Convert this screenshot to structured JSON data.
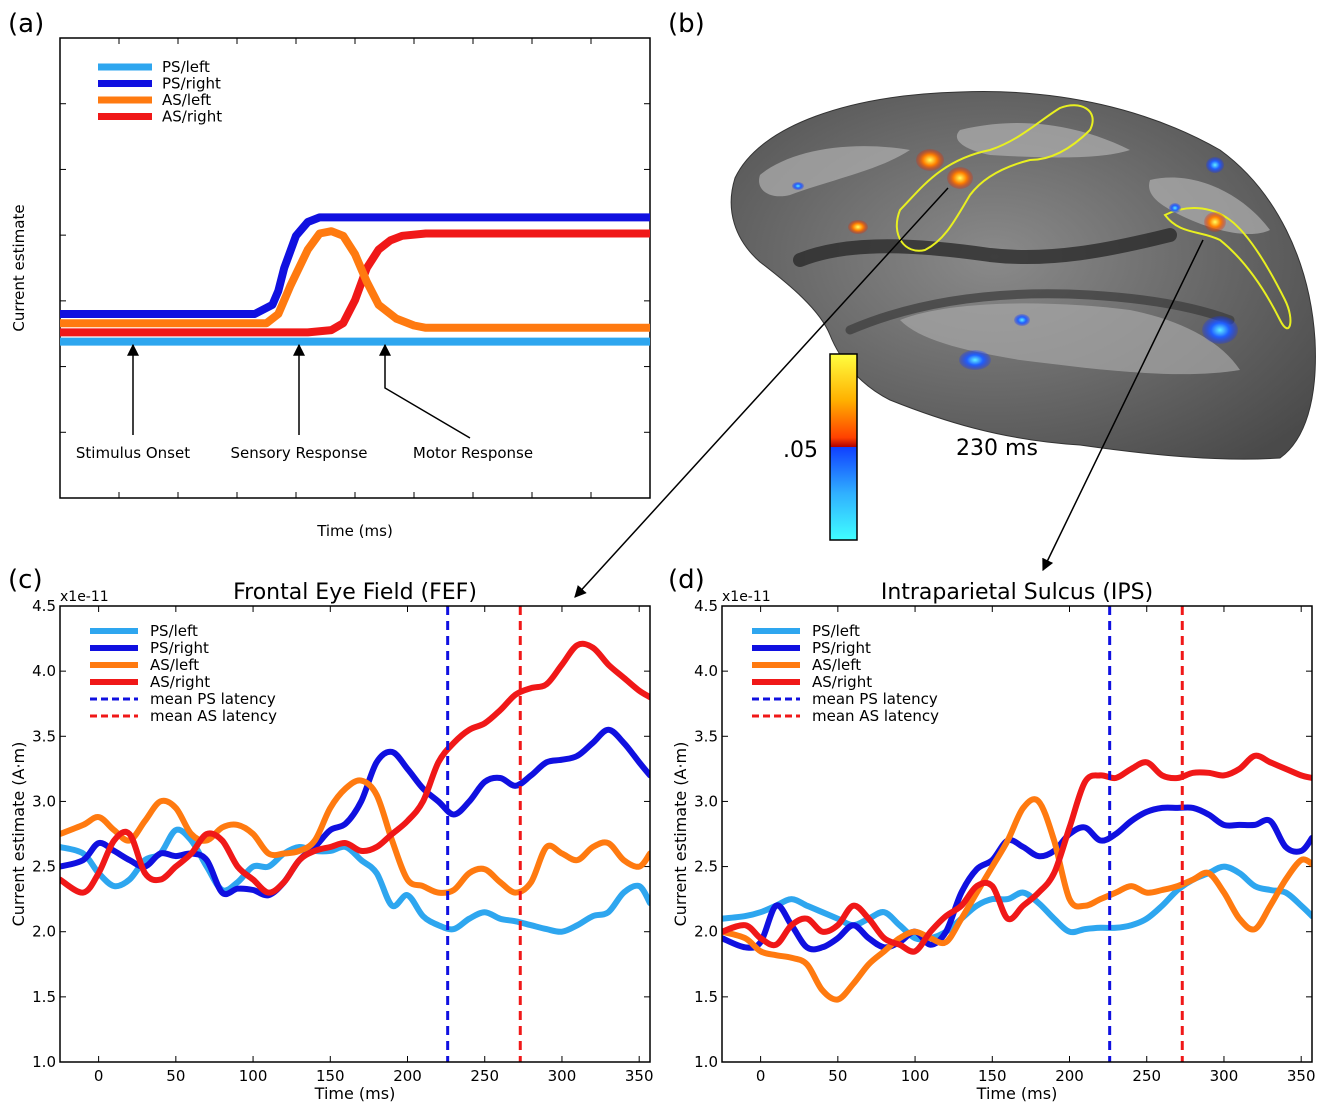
{
  "panel_labels": {
    "a": "(a)",
    "b": "(b)",
    "c": "(c)",
    "d": "(d)"
  },
  "colors": {
    "ps_left": "#2ea6ef",
    "ps_right": "#1010e0",
    "as_left": "#ff7a10",
    "as_right": "#f01818",
    "outline": "#e8f020"
  },
  "brain": {
    "colorbar_label": ".05",
    "time_label": "230 ms",
    "colorbar_colors": [
      "#ffff40",
      "#ffb000",
      "#ff4000",
      "#b00000",
      "#1040ff",
      "#30b0ff",
      "#40ffff"
    ]
  },
  "chart_data": [
    {
      "type": "line",
      "panel": "a",
      "xlabel": "Time (ms)",
      "ylabel": "Current estimate",
      "x_range": [
        0,
        100
      ],
      "y_range": [
        0,
        10
      ],
      "legend": {
        "position": "top-left",
        "entries": [
          "PS/left",
          "PS/right",
          "AS/left",
          "AS/right"
        ]
      },
      "series": [
        {
          "name": "PS/left",
          "x": [
            0,
            100
          ],
          "y": [
            3.4,
            3.4
          ]
        },
        {
          "name": "PS/right",
          "x": [
            0,
            33,
            36,
            37,
            38,
            40,
            42,
            44,
            100
          ],
          "y": [
            4.0,
            4.0,
            4.2,
            4.5,
            5.0,
            5.7,
            6.0,
            6.1,
            6.1
          ]
        },
        {
          "name": "AS/left",
          "x": [
            0,
            35,
            37,
            39,
            42,
            44,
            46,
            48,
            50,
            52,
            54,
            57,
            60,
            62,
            100
          ],
          "y": [
            3.8,
            3.8,
            4.0,
            4.6,
            5.4,
            5.75,
            5.8,
            5.7,
            5.3,
            4.7,
            4.2,
            3.9,
            3.75,
            3.7,
            3.7
          ]
        },
        {
          "name": "AS/right",
          "x": [
            0,
            42,
            46,
            48,
            50,
            52,
            54,
            56,
            58,
            62,
            100
          ],
          "y": [
            3.6,
            3.6,
            3.65,
            3.8,
            4.3,
            5.0,
            5.4,
            5.6,
            5.7,
            5.75,
            5.75
          ]
        }
      ],
      "annotations": [
        "Stimulus Onset",
        "Sensory Response",
        "Motor Response"
      ]
    },
    {
      "type": "line",
      "panel": "c",
      "title": "Frontal Eye Field (FEF)",
      "xlabel": "Time (ms)",
      "ylabel": "Current estimate (A·m)",
      "y_offset_label": "x1e-11",
      "xlim": [
        -25,
        357
      ],
      "ylim": [
        1.0,
        4.5
      ],
      "xticks": [
        0,
        50,
        100,
        150,
        200,
        250,
        300,
        350
      ],
      "yticks": [
        1.0,
        1.5,
        2.0,
        2.5,
        3.0,
        3.5,
        4.0,
        4.5
      ],
      "xtick_labels": [
        "0",
        "50",
        "100",
        "150",
        "200",
        "250",
        "300",
        "350"
      ],
      "ytick_labels": [
        "1.0",
        "1.5",
        "2.0",
        "2.5",
        "3.0",
        "3.5",
        "4.0",
        "4.5"
      ],
      "legend": {
        "position": "top-left",
        "entries": [
          "PS/left",
          "PS/right",
          "AS/left",
          "AS/right",
          "mean PS latency",
          "mean AS latency"
        ]
      },
      "vlines": [
        {
          "name": "mean PS latency",
          "x": 226
        },
        {
          "name": "mean AS latency",
          "x": 273
        }
      ],
      "series": [
        {
          "name": "PS/left",
          "x": [
            -25,
            -10,
            0,
            10,
            20,
            30,
            40,
            50,
            60,
            70,
            80,
            90,
            100,
            110,
            120,
            130,
            140,
            150,
            160,
            170,
            180,
            190,
            200,
            210,
            220,
            230,
            240,
            250,
            260,
            270,
            280,
            290,
            300,
            310,
            320,
            330,
            340,
            350,
            357
          ],
          "y": [
            2.65,
            2.6,
            2.45,
            2.35,
            2.4,
            2.55,
            2.6,
            2.78,
            2.7,
            2.5,
            2.32,
            2.38,
            2.5,
            2.5,
            2.6,
            2.65,
            2.62,
            2.62,
            2.65,
            2.55,
            2.45,
            2.2,
            2.28,
            2.12,
            2.05,
            2.02,
            2.1,
            2.15,
            2.1,
            2.08,
            2.05,
            2.02,
            2.0,
            2.05,
            2.12,
            2.15,
            2.3,
            2.35,
            2.22
          ]
        },
        {
          "name": "PS/right",
          "x": [
            -25,
            -10,
            0,
            10,
            20,
            30,
            40,
            50,
            60,
            70,
            80,
            90,
            100,
            110,
            120,
            130,
            140,
            150,
            160,
            170,
            180,
            190,
            200,
            210,
            220,
            230,
            240,
            250,
            260,
            270,
            280,
            290,
            300,
            310,
            320,
            330,
            340,
            350,
            357
          ],
          "y": [
            2.5,
            2.55,
            2.68,
            2.62,
            2.55,
            2.5,
            2.6,
            2.58,
            2.6,
            2.55,
            2.3,
            2.33,
            2.32,
            2.28,
            2.38,
            2.55,
            2.65,
            2.78,
            2.83,
            3.0,
            3.3,
            3.38,
            3.25,
            3.1,
            3.0,
            2.9,
            3.0,
            3.15,
            3.18,
            3.12,
            3.2,
            3.3,
            3.32,
            3.35,
            3.45,
            3.55,
            3.45,
            3.3,
            3.2
          ]
        },
        {
          "name": "AS/left",
          "x": [
            -25,
            -10,
            0,
            10,
            20,
            30,
            40,
            50,
            60,
            70,
            80,
            90,
            100,
            110,
            120,
            130,
            140,
            150,
            160,
            170,
            180,
            190,
            200,
            210,
            220,
            230,
            240,
            250,
            260,
            270,
            280,
            290,
            300,
            310,
            320,
            330,
            340,
            350,
            357
          ],
          "y": [
            2.75,
            2.82,
            2.88,
            2.78,
            2.7,
            2.85,
            3.0,
            2.95,
            2.75,
            2.7,
            2.8,
            2.82,
            2.75,
            2.6,
            2.6,
            2.62,
            2.7,
            2.95,
            3.1,
            3.16,
            3.05,
            2.7,
            2.4,
            2.35,
            2.3,
            2.32,
            2.45,
            2.48,
            2.38,
            2.3,
            2.38,
            2.65,
            2.6,
            2.55,
            2.65,
            2.68,
            2.55,
            2.5,
            2.6
          ]
        },
        {
          "name": "AS/right",
          "x": [
            -25,
            -10,
            0,
            10,
            20,
            30,
            40,
            50,
            60,
            70,
            80,
            90,
            100,
            110,
            120,
            130,
            140,
            150,
            160,
            170,
            180,
            190,
            200,
            210,
            220,
            230,
            240,
            250,
            260,
            270,
            280,
            290,
            300,
            310,
            320,
            330,
            340,
            350,
            357
          ],
          "y": [
            2.4,
            2.3,
            2.45,
            2.7,
            2.75,
            2.45,
            2.4,
            2.5,
            2.6,
            2.75,
            2.7,
            2.5,
            2.4,
            2.3,
            2.38,
            2.55,
            2.62,
            2.65,
            2.68,
            2.62,
            2.65,
            2.75,
            2.85,
            3.0,
            3.3,
            3.45,
            3.55,
            3.6,
            3.7,
            3.82,
            3.87,
            3.9,
            4.05,
            4.2,
            4.18,
            4.05,
            3.95,
            3.85,
            3.8
          ]
        }
      ]
    },
    {
      "type": "line",
      "panel": "d",
      "title": "Intraparietal Sulcus (IPS)",
      "xlabel": "Time (ms)",
      "ylabel": "Current estimate (A·m)",
      "y_offset_label": "x1e-11",
      "xlim": [
        -25,
        357
      ],
      "ylim": [
        1.0,
        4.5
      ],
      "xticks": [
        0,
        50,
        100,
        150,
        200,
        250,
        300,
        350
      ],
      "yticks": [
        1.0,
        1.5,
        2.0,
        2.5,
        3.0,
        3.5,
        4.0,
        4.5
      ],
      "xtick_labels": [
        "0",
        "50",
        "100",
        "150",
        "200",
        "250",
        "300",
        "350"
      ],
      "ytick_labels": [
        "1.0",
        "1.5",
        "2.0",
        "2.5",
        "3.0",
        "3.5",
        "4.0",
        "4.5"
      ],
      "legend": {
        "position": "top-left",
        "entries": [
          "PS/left",
          "PS/right",
          "AS/left",
          "AS/right",
          "mean PS latency",
          "mean AS latency"
        ]
      },
      "vlines": [
        {
          "name": "mean PS latency",
          "x": 226
        },
        {
          "name": "mean AS latency",
          "x": 273
        }
      ],
      "series": [
        {
          "name": "PS/left",
          "x": [
            -25,
            -10,
            0,
            10,
            20,
            30,
            40,
            50,
            60,
            70,
            80,
            90,
            100,
            110,
            120,
            130,
            140,
            150,
            160,
            170,
            180,
            190,
            200,
            210,
            220,
            230,
            240,
            250,
            260,
            270,
            280,
            290,
            300,
            310,
            320,
            330,
            340,
            350,
            357
          ],
          "y": [
            2.1,
            2.12,
            2.15,
            2.2,
            2.25,
            2.2,
            2.15,
            2.1,
            2.05,
            2.1,
            2.15,
            2.05,
            1.95,
            1.95,
            2.0,
            2.1,
            2.2,
            2.25,
            2.25,
            2.3,
            2.22,
            2.1,
            2.0,
            2.02,
            2.03,
            2.03,
            2.05,
            2.1,
            2.2,
            2.32,
            2.4,
            2.45,
            2.5,
            2.45,
            2.35,
            2.32,
            2.3,
            2.2,
            2.12
          ]
        },
        {
          "name": "PS/right",
          "x": [
            -25,
            -10,
            0,
            10,
            20,
            30,
            40,
            50,
            60,
            70,
            80,
            90,
            100,
            110,
            120,
            130,
            140,
            150,
            160,
            170,
            180,
            190,
            200,
            210,
            220,
            230,
            240,
            250,
            260,
            270,
            280,
            290,
            300,
            310,
            320,
            330,
            340,
            350,
            357
          ],
          "y": [
            1.95,
            1.88,
            1.92,
            2.2,
            2.05,
            1.88,
            1.88,
            1.95,
            2.05,
            1.95,
            1.88,
            1.92,
            2.0,
            1.9,
            2.0,
            2.3,
            2.48,
            2.55,
            2.7,
            2.65,
            2.58,
            2.62,
            2.75,
            2.8,
            2.7,
            2.75,
            2.85,
            2.92,
            2.95,
            2.95,
            2.95,
            2.9,
            2.82,
            2.82,
            2.82,
            2.85,
            2.65,
            2.62,
            2.72
          ]
        },
        {
          "name": "AS/left",
          "x": [
            -25,
            -10,
            0,
            10,
            20,
            30,
            40,
            50,
            60,
            70,
            80,
            90,
            100,
            110,
            120,
            130,
            140,
            150,
            160,
            170,
            180,
            190,
            200,
            210,
            220,
            230,
            240,
            250,
            260,
            270,
            280,
            290,
            300,
            310,
            320,
            330,
            340,
            350,
            357
          ],
          "y": [
            2.0,
            1.95,
            1.85,
            1.82,
            1.8,
            1.75,
            1.55,
            1.48,
            1.6,
            1.75,
            1.85,
            1.95,
            2.0,
            1.95,
            1.92,
            2.1,
            2.3,
            2.5,
            2.7,
            2.95,
            3.0,
            2.7,
            2.25,
            2.2,
            2.25,
            2.3,
            2.35,
            2.3,
            2.32,
            2.35,
            2.4,
            2.45,
            2.3,
            2.1,
            2.02,
            2.2,
            2.4,
            2.55,
            2.52
          ]
        },
        {
          "name": "AS/right",
          "x": [
            -25,
            -10,
            0,
            10,
            20,
            30,
            40,
            50,
            60,
            70,
            80,
            90,
            100,
            110,
            120,
            130,
            140,
            150,
            160,
            170,
            180,
            190,
            200,
            210,
            220,
            230,
            240,
            250,
            260,
            270,
            280,
            290,
            300,
            310,
            320,
            330,
            340,
            350,
            357
          ],
          "y": [
            2.0,
            2.05,
            1.95,
            1.9,
            2.05,
            2.1,
            2.0,
            2.05,
            2.2,
            2.1,
            1.95,
            1.9,
            1.85,
            2.0,
            2.12,
            2.2,
            2.35,
            2.35,
            2.1,
            2.2,
            2.3,
            2.45,
            2.8,
            3.15,
            3.2,
            3.18,
            3.25,
            3.3,
            3.2,
            3.18,
            3.22,
            3.22,
            3.2,
            3.25,
            3.35,
            3.3,
            3.25,
            3.2,
            3.18
          ]
        }
      ]
    }
  ]
}
